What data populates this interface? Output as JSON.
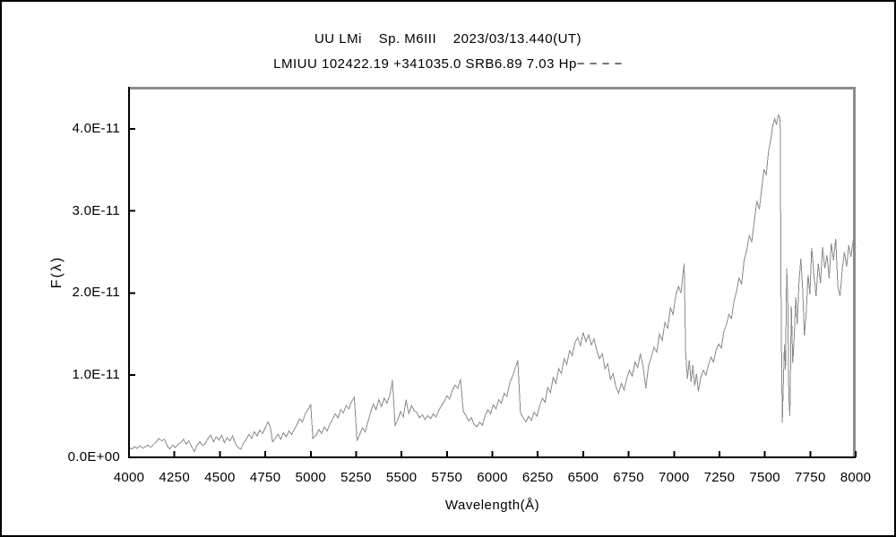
{
  "chart_data": {
    "type": "line",
    "title": "UU LMi    Sp. M6III    2023/03/13.440(UT)",
    "subtitle": "LMIUU 102422.19 +341035.0 SRB6.89 7.03 Hp− − − −",
    "xlabel": "Wavelength(Å)",
    "ylabel": "F(λ)",
    "xlim": [
      4000,
      8000
    ],
    "ylim": [
      0,
      4.51
    ],
    "flux_unit_scale": "1e-11",
    "grid": false,
    "legend": "none",
    "line_color": "#8a8a8a",
    "axis_color": "#000000",
    "frame_color": "#8c8c8c",
    "xticks": [
      {
        "value": 4000,
        "label": "4000"
      },
      {
        "value": 4250,
        "label": "4250"
      },
      {
        "value": 4500,
        "label": "4500"
      },
      {
        "value": 4750,
        "label": "4750"
      },
      {
        "value": 5000,
        "label": "5000"
      },
      {
        "value": 5250,
        "label": "5250"
      },
      {
        "value": 5500,
        "label": "5500"
      },
      {
        "value": 5750,
        "label": "5750"
      },
      {
        "value": 6000,
        "label": "6000"
      },
      {
        "value": 6250,
        "label": "6250"
      },
      {
        "value": 6500,
        "label": "6500"
      },
      {
        "value": 6750,
        "label": "6750"
      },
      {
        "value": 7000,
        "label": "7000"
      },
      {
        "value": 7250,
        "label": "7250"
      },
      {
        "value": 7500,
        "label": "7500"
      },
      {
        "value": 7750,
        "label": "7750"
      },
      {
        "value": 8000,
        "label": "8000"
      }
    ],
    "yticks": [
      {
        "value": 0.0,
        "label": "0.0E+00"
      },
      {
        "value": 1.0,
        "label": "1.0E-11"
      },
      {
        "value": 2.0,
        "label": "2.0E-11"
      },
      {
        "value": 3.0,
        "label": "3.0E-11"
      },
      {
        "value": 4.0,
        "label": "4.0E-11"
      }
    ],
    "series": [
      {
        "name": "UU LMi spectrum",
        "points": [
          [
            4000,
            0.12
          ],
          [
            4015,
            0.1
          ],
          [
            4030,
            0.13
          ],
          [
            4045,
            0.11
          ],
          [
            4060,
            0.14
          ],
          [
            4075,
            0.11
          ],
          [
            4090,
            0.13
          ],
          [
            4105,
            0.15
          ],
          [
            4120,
            0.12
          ],
          [
            4135,
            0.16
          ],
          [
            4150,
            0.19
          ],
          [
            4165,
            0.23
          ],
          [
            4180,
            0.2
          ],
          [
            4195,
            0.22
          ],
          [
            4210,
            0.14
          ],
          [
            4225,
            0.1
          ],
          [
            4240,
            0.15
          ],
          [
            4255,
            0.12
          ],
          [
            4270,
            0.16
          ],
          [
            4285,
            0.18
          ],
          [
            4300,
            0.22
          ],
          [
            4315,
            0.16
          ],
          [
            4330,
            0.2
          ],
          [
            4345,
            0.13
          ],
          [
            4360,
            0.07
          ],
          [
            4375,
            0.15
          ],
          [
            4390,
            0.19
          ],
          [
            4405,
            0.14
          ],
          [
            4420,
            0.17
          ],
          [
            4435,
            0.23
          ],
          [
            4450,
            0.27
          ],
          [
            4465,
            0.19
          ],
          [
            4480,
            0.25
          ],
          [
            4495,
            0.21
          ],
          [
            4510,
            0.27
          ],
          [
            4525,
            0.18
          ],
          [
            4540,
            0.24
          ],
          [
            4555,
            0.2
          ],
          [
            4570,
            0.26
          ],
          [
            4585,
            0.17
          ],
          [
            4600,
            0.12
          ],
          [
            4615,
            0.1
          ],
          [
            4630,
            0.17
          ],
          [
            4645,
            0.22
          ],
          [
            4660,
            0.28
          ],
          [
            4675,
            0.23
          ],
          [
            4690,
            0.31
          ],
          [
            4705,
            0.26
          ],
          [
            4720,
            0.33
          ],
          [
            4735,
            0.29
          ],
          [
            4750,
            0.36
          ],
          [
            4765,
            0.43
          ],
          [
            4778,
            0.37
          ],
          [
            4790,
            0.19
          ],
          [
            4805,
            0.23
          ],
          [
            4820,
            0.28
          ],
          [
            4835,
            0.22
          ],
          [
            4850,
            0.3
          ],
          [
            4865,
            0.25
          ],
          [
            4880,
            0.32
          ],
          [
            4895,
            0.28
          ],
          [
            4910,
            0.34
          ],
          [
            4925,
            0.4
          ],
          [
            4940,
            0.47
          ],
          [
            4955,
            0.43
          ],
          [
            4970,
            0.53
          ],
          [
            4985,
            0.58
          ],
          [
            5000,
            0.64
          ],
          [
            5012,
            0.23
          ],
          [
            5030,
            0.27
          ],
          [
            5045,
            0.34
          ],
          [
            5060,
            0.29
          ],
          [
            5075,
            0.37
          ],
          [
            5090,
            0.32
          ],
          [
            5105,
            0.4
          ],
          [
            5120,
            0.46
          ],
          [
            5135,
            0.53
          ],
          [
            5150,
            0.48
          ],
          [
            5165,
            0.58
          ],
          [
            5180,
            0.54
          ],
          [
            5195,
            0.63
          ],
          [
            5210,
            0.59
          ],
          [
            5225,
            0.68
          ],
          [
            5240,
            0.73
          ],
          [
            5255,
            0.2
          ],
          [
            5270,
            0.28
          ],
          [
            5285,
            0.36
          ],
          [
            5300,
            0.31
          ],
          [
            5315,
            0.43
          ],
          [
            5330,
            0.55
          ],
          [
            5345,
            0.65
          ],
          [
            5360,
            0.58
          ],
          [
            5375,
            0.7
          ],
          [
            5390,
            0.62
          ],
          [
            5405,
            0.72
          ],
          [
            5420,
            0.66
          ],
          [
            5435,
            0.75
          ],
          [
            5450,
            0.94
          ],
          [
            5465,
            0.39
          ],
          [
            5480,
            0.46
          ],
          [
            5495,
            0.56
          ],
          [
            5510,
            0.49
          ],
          [
            5525,
            0.7
          ],
          [
            5540,
            0.53
          ],
          [
            5555,
            0.63
          ],
          [
            5570,
            0.57
          ],
          [
            5585,
            0.54
          ],
          [
            5600,
            0.48
          ],
          [
            5615,
            0.52
          ],
          [
            5630,
            0.46
          ],
          [
            5645,
            0.51
          ],
          [
            5660,
            0.47
          ],
          [
            5675,
            0.53
          ],
          [
            5690,
            0.49
          ],
          [
            5705,
            0.57
          ],
          [
            5720,
            0.63
          ],
          [
            5735,
            0.68
          ],
          [
            5750,
            0.75
          ],
          [
            5765,
            0.71
          ],
          [
            5780,
            0.82
          ],
          [
            5795,
            0.88
          ],
          [
            5810,
            0.84
          ],
          [
            5825,
            0.95
          ],
          [
            5840,
            0.56
          ],
          [
            5855,
            0.51
          ],
          [
            5870,
            0.44
          ],
          [
            5885,
            0.48
          ],
          [
            5900,
            0.4
          ],
          [
            5915,
            0.37
          ],
          [
            5930,
            0.43
          ],
          [
            5945,
            0.39
          ],
          [
            5960,
            0.5
          ],
          [
            5975,
            0.58
          ],
          [
            5990,
            0.53
          ],
          [
            6005,
            0.64
          ],
          [
            6020,
            0.59
          ],
          [
            6035,
            0.7
          ],
          [
            6050,
            0.66
          ],
          [
            6065,
            0.78
          ],
          [
            6080,
            0.74
          ],
          [
            6095,
            0.9
          ],
          [
            6110,
            0.98
          ],
          [
            6125,
            1.08
          ],
          [
            6140,
            1.18
          ],
          [
            6155,
            0.54
          ],
          [
            6170,
            0.48
          ],
          [
            6185,
            0.43
          ],
          [
            6200,
            0.5
          ],
          [
            6215,
            0.45
          ],
          [
            6230,
            0.55
          ],
          [
            6245,
            0.5
          ],
          [
            6260,
            0.62
          ],
          [
            6275,
            0.72
          ],
          [
            6290,
            0.67
          ],
          [
            6305,
            0.85
          ],
          [
            6320,
            0.79
          ],
          [
            6335,
            0.97
          ],
          [
            6350,
            0.9
          ],
          [
            6365,
            1.08
          ],
          [
            6380,
            1.02
          ],
          [
            6395,
            1.2
          ],
          [
            6410,
            1.13
          ],
          [
            6425,
            1.3
          ],
          [
            6440,
            1.24
          ],
          [
            6455,
            1.4
          ],
          [
            6470,
            1.46
          ],
          [
            6485,
            1.36
          ],
          [
            6500,
            1.52
          ],
          [
            6515,
            1.41
          ],
          [
            6530,
            1.49
          ],
          [
            6545,
            1.37
          ],
          [
            6560,
            1.44
          ],
          [
            6575,
            1.3
          ],
          [
            6590,
            1.2
          ],
          [
            6605,
            1.26
          ],
          [
            6620,
            1.08
          ],
          [
            6635,
            1.14
          ],
          [
            6650,
            0.95
          ],
          [
            6665,
            1.02
          ],
          [
            6680,
            0.86
          ],
          [
            6695,
            0.78
          ],
          [
            6710,
            0.9
          ],
          [
            6725,
            0.82
          ],
          [
            6740,
            0.96
          ],
          [
            6755,
            1.06
          ],
          [
            6770,
            0.99
          ],
          [
            6785,
            1.16
          ],
          [
            6800,
            1.09
          ],
          [
            6815,
            1.26
          ],
          [
            6830,
            1.1
          ],
          [
            6845,
            0.84
          ],
          [
            6860,
            1.12
          ],
          [
            6875,
            1.22
          ],
          [
            6890,
            1.34
          ],
          [
            6905,
            1.28
          ],
          [
            6920,
            1.5
          ],
          [
            6935,
            1.42
          ],
          [
            6950,
            1.64
          ],
          [
            6965,
            1.57
          ],
          [
            6980,
            1.82
          ],
          [
            6995,
            1.74
          ],
          [
            7010,
            1.98
          ],
          [
            7025,
            2.08
          ],
          [
            7038,
            2.0
          ],
          [
            7048,
            2.2
          ],
          [
            7056,
            2.36
          ],
          [
            7064,
            1.28
          ],
          [
            7074,
            0.96
          ],
          [
            7084,
            1.18
          ],
          [
            7094,
            0.92
          ],
          [
            7104,
            1.12
          ],
          [
            7114,
            0.87
          ],
          [
            7124,
            1.02
          ],
          [
            7134,
            0.8
          ],
          [
            7148,
            0.98
          ],
          [
            7162,
            1.06
          ],
          [
            7176,
            1.0
          ],
          [
            7190,
            1.13
          ],
          [
            7204,
            1.22
          ],
          [
            7218,
            1.16
          ],
          [
            7232,
            1.31
          ],
          [
            7246,
            1.38
          ],
          [
            7260,
            1.33
          ],
          [
            7274,
            1.53
          ],
          [
            7288,
            1.61
          ],
          [
            7302,
            1.74
          ],
          [
            7316,
            1.69
          ],
          [
            7330,
            1.9
          ],
          [
            7344,
            2.02
          ],
          [
            7358,
            2.18
          ],
          [
            7372,
            2.11
          ],
          [
            7386,
            2.4
          ],
          [
            7400,
            2.52
          ],
          [
            7414,
            2.7
          ],
          [
            7428,
            2.62
          ],
          [
            7442,
            2.88
          ],
          [
            7456,
            3.12
          ],
          [
            7470,
            3.02
          ],
          [
            7484,
            3.3
          ],
          [
            7496,
            3.5
          ],
          [
            7508,
            3.44
          ],
          [
            7520,
            3.72
          ],
          [
            7532,
            3.86
          ],
          [
            7544,
            4.04
          ],
          [
            7554,
            4.12
          ],
          [
            7564,
            4.05
          ],
          [
            7574,
            4.17
          ],
          [
            7584,
            4.12
          ],
          [
            7590,
            1.65
          ],
          [
            7596,
            0.42
          ],
          [
            7602,
            0.9
          ],
          [
            7608,
            1.37
          ],
          [
            7614,
            1.06
          ],
          [
            7620,
            2.3
          ],
          [
            7626,
            1.95
          ],
          [
            7632,
            0.72
          ],
          [
            7638,
            0.5
          ],
          [
            7646,
            1.84
          ],
          [
            7654,
            1.15
          ],
          [
            7662,
            1.48
          ],
          [
            7670,
            1.95
          ],
          [
            7678,
            1.62
          ],
          [
            7688,
            2.12
          ],
          [
            7698,
            2.42
          ],
          [
            7708,
            2.05
          ],
          [
            7718,
            1.48
          ],
          [
            7728,
            1.78
          ],
          [
            7738,
            2.22
          ],
          [
            7748,
            1.98
          ],
          [
            7758,
            2.55
          ],
          [
            7770,
            2.22
          ],
          [
            7782,
            1.96
          ],
          [
            7794,
            2.36
          ],
          [
            7806,
            2.12
          ],
          [
            7818,
            2.56
          ],
          [
            7830,
            2.3
          ],
          [
            7842,
            2.46
          ],
          [
            7854,
            2.18
          ],
          [
            7866,
            2.6
          ],
          [
            7878,
            2.4
          ],
          [
            7890,
            2.66
          ],
          [
            7902,
            2.08
          ],
          [
            7914,
            1.96
          ],
          [
            7926,
            2.28
          ],
          [
            7938,
            2.5
          ],
          [
            7950,
            2.32
          ],
          [
            7962,
            2.58
          ],
          [
            7974,
            2.44
          ],
          [
            7986,
            2.64
          ],
          [
            8000,
            2.55
          ]
        ]
      }
    ]
  }
}
